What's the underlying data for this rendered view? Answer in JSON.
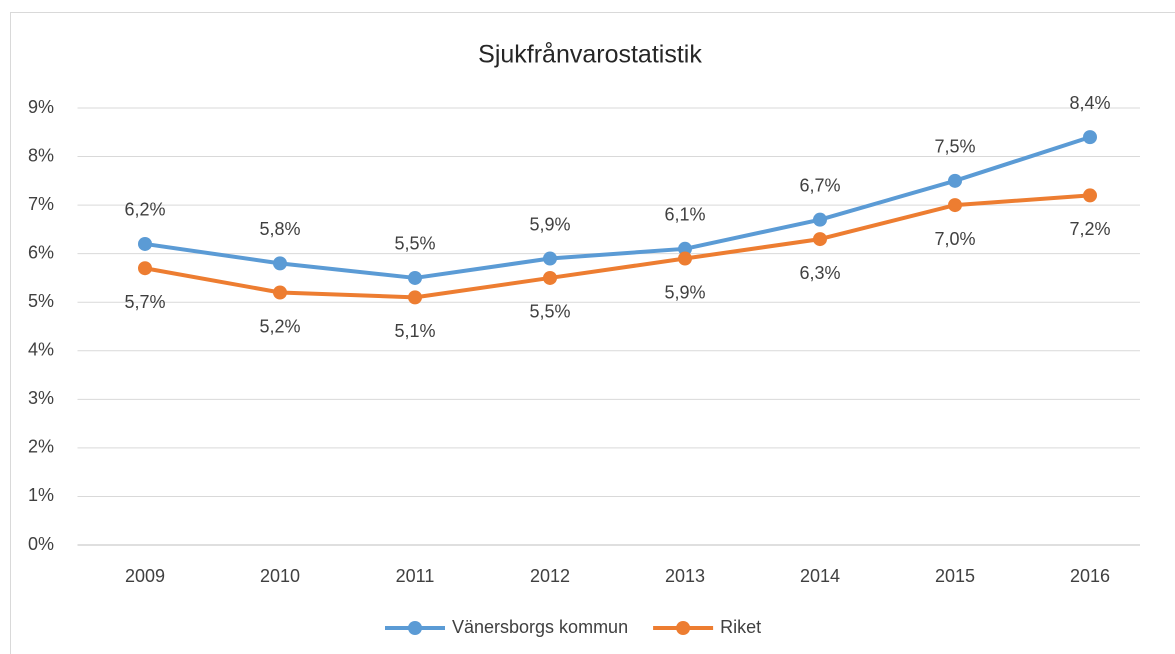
{
  "chart_data": {
    "type": "line",
    "title": "Sjukfrånvarostatistik",
    "categories": [
      "2009",
      "2010",
      "2011",
      "2012",
      "2013",
      "2014",
      "2015",
      "2016"
    ],
    "series": [
      {
        "name": "Vänersborgs kommun",
        "color": "#5b9bd5",
        "values": [
          6.2,
          5.8,
          5.5,
          5.9,
          6.1,
          6.7,
          7.5,
          8.4
        ],
        "value_labels": [
          "6,2%",
          "5,8%",
          "5,5%",
          "5,9%",
          "6,1%",
          "6,7%",
          "7,5%",
          "8,4%"
        ]
      },
      {
        "name": "Riket",
        "color": "#ed7d31",
        "values": [
          5.7,
          5.2,
          5.1,
          5.5,
          5.9,
          6.3,
          7.0,
          7.2
        ],
        "value_labels": [
          "5,7%",
          "5,2%",
          "5,1%",
          "5,5%",
          "5,9%",
          "6,3%",
          "7,0%",
          "7,2%"
        ]
      }
    ],
    "ylim": [
      0,
      9
    ],
    "yticks": [
      {
        "value": 0,
        "label": "0%"
      },
      {
        "value": 1,
        "label": "1%"
      },
      {
        "value": 2,
        "label": "2%"
      },
      {
        "value": 3,
        "label": "3%"
      },
      {
        "value": 4,
        "label": "4%"
      },
      {
        "value": 5,
        "label": "5%"
      },
      {
        "value": 6,
        "label": "6%"
      },
      {
        "value": 7,
        "label": "7%"
      },
      {
        "value": 8,
        "label": "8%"
      },
      {
        "value": 9,
        "label": "9%"
      }
    ],
    "grid": true,
    "legend": "bottom"
  }
}
